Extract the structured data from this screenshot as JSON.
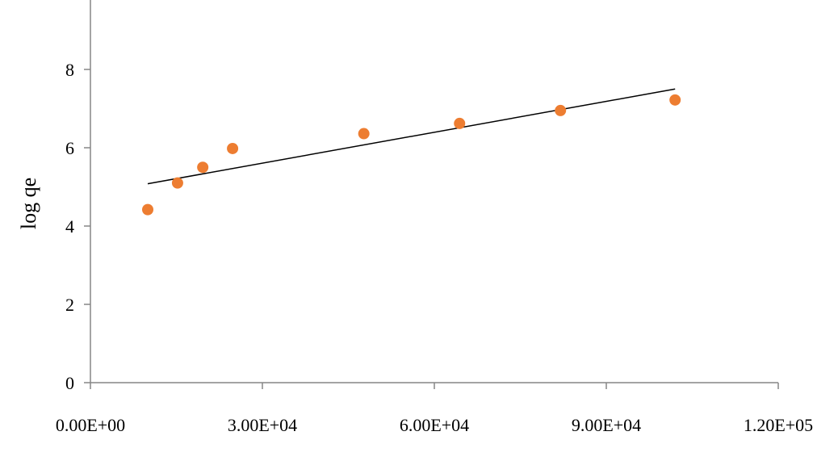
{
  "chart_data": {
    "type": "scatter",
    "title": "",
    "xlabel": "",
    "ylabel": "log qe",
    "xlim": [
      0,
      120000
    ],
    "ylim": [
      0,
      10
    ],
    "x_ticks": [
      0,
      30000,
      60000,
      90000,
      120000
    ],
    "x_tick_labels": [
      "0.00E+00",
      "3.00E+04",
      "6.00E+04",
      "9.00E+04",
      "1.20E+05"
    ],
    "y_ticks": [
      0,
      2,
      4,
      6,
      8
    ],
    "y_tick_labels": [
      "0",
      "2",
      "4",
      "6",
      "8"
    ],
    "grid": false,
    "legend": "none",
    "series": [
      {
        "values_x": [
          10000,
          15200,
          19600,
          24800,
          47700,
          64400,
          82000,
          102000
        ],
        "values_y": [
          4.42,
          5.1,
          5.5,
          5.98,
          6.36,
          6.62,
          6.95,
          7.22
        ],
        "color": "#ED7D31"
      }
    ],
    "trendline": {
      "x": [
        10000,
        102000
      ],
      "y": [
        5.08,
        7.5
      ],
      "color": "#000000"
    }
  }
}
